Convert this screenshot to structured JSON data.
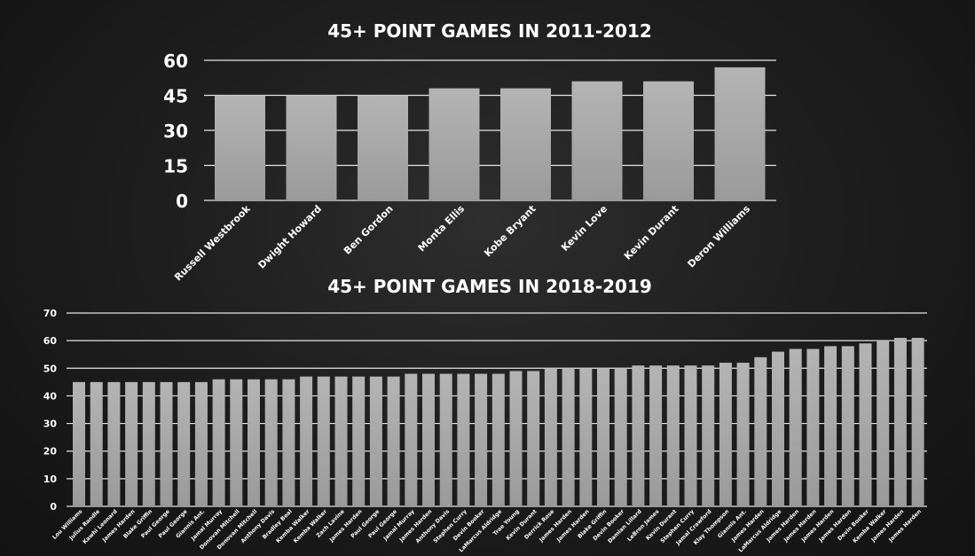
{
  "chart_data": [
    {
      "type": "bar",
      "title": "45+ POINT GAMES IN 2011-2012",
      "categories": [
        "Russell Westbrook",
        "Dwight Howard",
        "Ben Gordon",
        "Monta Ellis",
        "Kobe Bryant",
        "Kevin Love",
        "Kevin Durant",
        "Deron Williams"
      ],
      "values": [
        45,
        45,
        45,
        48,
        48,
        51,
        51,
        57
      ],
      "ylim": [
        0,
        60
      ],
      "yticks": [
        0,
        15,
        30,
        45,
        60
      ],
      "grid": true,
      "bar_color": "#a9a9a9"
    },
    {
      "type": "bar",
      "title": "45+ POINT GAMES IN 2018-2019",
      "categories": [
        "Lou Williams",
        "Julius Randle",
        "Kawhi Leonard",
        "James Harden",
        "Blake Griffin",
        "Paul George",
        "Paul George",
        "Giannis Ant.",
        "Jamal Murray",
        "Donovan Mitchell",
        "Donovan Mitchell",
        "Anthony Davis",
        "Bradley Beal",
        "Kemba Walker",
        "Kemba Walker",
        "Zach Lavine",
        "James Harden",
        "Paul George",
        "Paul George",
        "Jamal Murray",
        "James Harden",
        "Anthony Davis",
        "Stephen Curry",
        "Devin Booker",
        "LaMarcus Aldridge",
        "Trae Young",
        "Kevin Durant",
        "Derrick Rose",
        "James Harden",
        "James Harden",
        "Blake Griffin",
        "Devin Booker",
        "Damian Lillard",
        "LeBron James",
        "Kevin Durant",
        "Stephen Curry",
        "Jamal Crawford",
        "Klay Thompson",
        "Giannis Ant.",
        "James Harden",
        "LaMarcus Aldridge",
        "James Harden",
        "James Harden",
        "James Harden",
        "James Harden",
        "Devin Booker",
        "Kemba Walker",
        "James Harden",
        "James Harden"
      ],
      "values": [
        45,
        45,
        45,
        45,
        45,
        45,
        45,
        45,
        46,
        46,
        46,
        46,
        46,
        47,
        47,
        47,
        47,
        47,
        47,
        48,
        48,
        48,
        48,
        48,
        48,
        49,
        49,
        50,
        50,
        50,
        50,
        50,
        51,
        51,
        51,
        51,
        51,
        52,
        52,
        54,
        56,
        57,
        57,
        58,
        58,
        59,
        60,
        61,
        61
      ],
      "ylim": [
        0,
        70
      ],
      "yticks": [
        0,
        10,
        20,
        30,
        40,
        50,
        60,
        70
      ],
      "grid": true,
      "bar_color": "#a9a9a9"
    }
  ]
}
